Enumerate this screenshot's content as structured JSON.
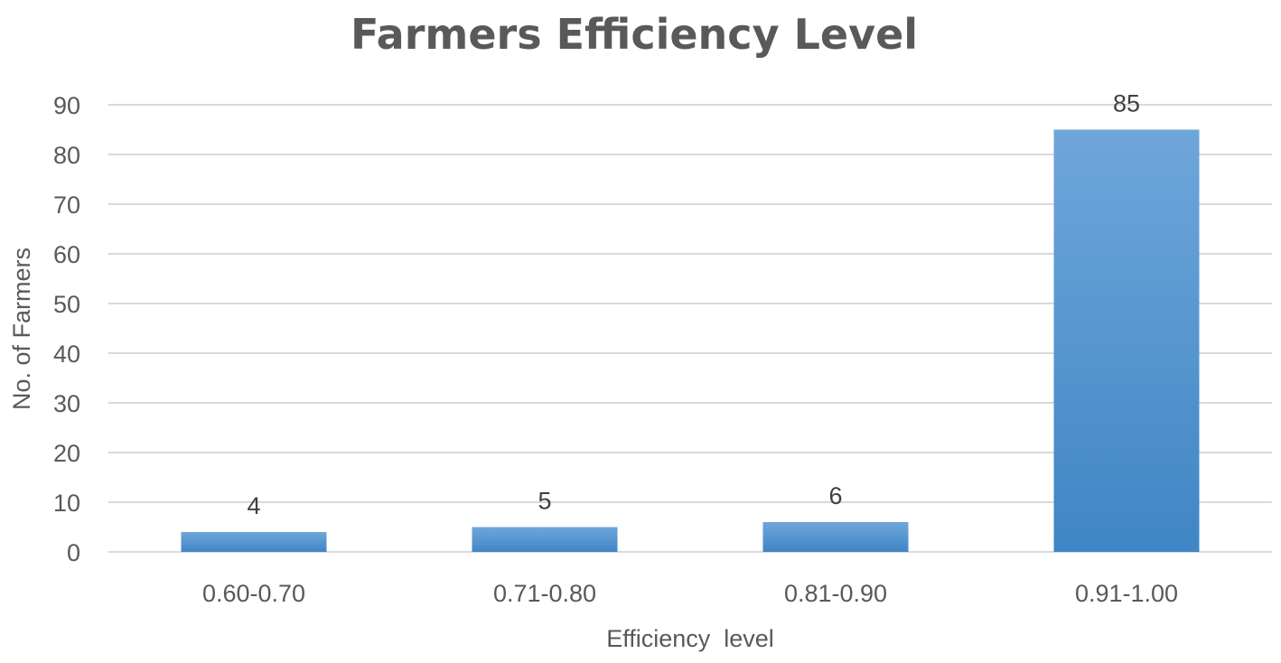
{
  "chart_data": {
    "type": "bar",
    "title": "Farmers Efficiency Level",
    "xlabel": "Efficiency  level",
    "ylabel": "No. of Farmers",
    "categories": [
      "0.60-0.70",
      "0.71-0.80",
      "0.81-0.90",
      "0.91-1.00"
    ],
    "values": [
      4,
      5,
      6,
      85
    ],
    "data_labels": [
      "4",
      "5",
      "6",
      "85"
    ],
    "ylim": [
      0,
      90
    ],
    "yticks": [
      0,
      10,
      20,
      30,
      40,
      50,
      60,
      70,
      80,
      90
    ],
    "ytick_labels": [
      "0",
      "10",
      "20",
      "30",
      "40",
      "50",
      "60",
      "70",
      "80",
      "90"
    ],
    "grid": true,
    "legend": "none",
    "bar_color_top": "#6fa6da",
    "bar_color_bottom": "#3f86c6"
  }
}
